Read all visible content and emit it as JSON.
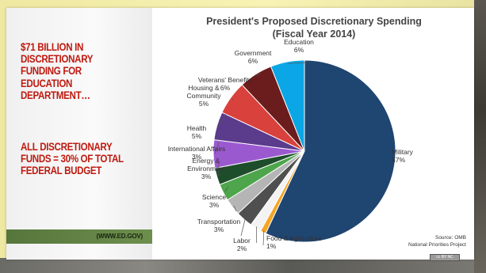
{
  "slide": {
    "headline_1": "$71 BILLION IN\nDISCRETIONARY\nFUNDING FOR\nEDUCATION\nDEPARTMENT…",
    "headline_2": "ALL DISCRETIONARY\nFUNDS = 30% OF TOTAL\nFEDERAL BUDGET",
    "source_label": "(WWW.ED.GOV)",
    "colors": {
      "headline": "#bf1a10",
      "source_bar": "#5d7f42"
    }
  },
  "chart_data": {
    "type": "pie",
    "title": "President's Proposed Discretionary Spending",
    "subtitle": "(Fiscal Year 2014)",
    "unit": "%",
    "start_angle_deg": 0,
    "direction": "clockwise",
    "slices": [
      {
        "name": "Military",
        "label_lines": [
          "Military",
          "57%"
        ],
        "value": 57,
        "color": "#1f4571"
      },
      {
        "name": "Food & Agriculture",
        "label_lines": [
          "Food & Agriculture",
          "1%"
        ],
        "value": 1,
        "color": "#f5a623"
      },
      {
        "name": "Labor",
        "label_lines": [
          "Labor",
          "2%"
        ],
        "value": 2,
        "color": "#f3f3f3"
      },
      {
        "name": "Transportation",
        "label_lines": [
          "Transportation",
          "3%"
        ],
        "value": 3,
        "color": "#4f4f4f"
      },
      {
        "name": "Science",
        "label_lines": [
          "Science",
          "3%"
        ],
        "value": 3,
        "color": "#b5b5b5"
      },
      {
        "name": "Energy & Environment",
        "label_lines": [
          "Energy &",
          "Environment",
          "3%"
        ],
        "value": 3,
        "color": "#4ea54b"
      },
      {
        "name": "International Affairs",
        "label_lines": [
          "International  Affairs",
          "3%"
        ],
        "value": 3,
        "color": "#1e4d2b"
      },
      {
        "name": "Health",
        "label_lines": [
          "Health",
          "5%"
        ],
        "value": 5,
        "color": "#9b59d0"
      },
      {
        "name": "Housing & Community",
        "label_lines": [
          "Housing  &",
          "Community",
          "5%"
        ],
        "value": 5,
        "color": "#5b3b8c"
      },
      {
        "name": "Veterans' Benefits",
        "label_lines": [
          "Veterans' Benefits",
          "6%"
        ],
        "value": 6,
        "color": "#d9413c"
      },
      {
        "name": "Government",
        "label_lines": [
          "Government",
          "6%"
        ],
        "value": 6,
        "color": "#6b1c1c"
      },
      {
        "name": "Education",
        "label_lines": [
          "Education",
          "6%"
        ],
        "value": 6,
        "color": "#0aa6e6"
      }
    ],
    "source": [
      "Source: OMB",
      "National Priorities Project"
    ],
    "license_badge": "cc BY NC"
  }
}
